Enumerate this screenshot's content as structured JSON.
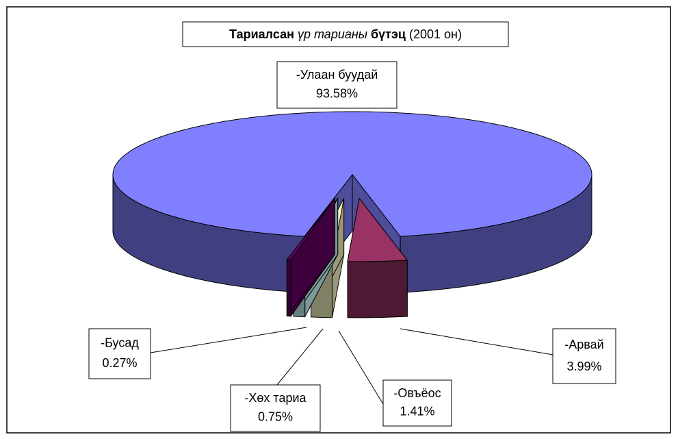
{
  "chart_data": {
    "type": "pie3d",
    "title": [
      {
        "text": "Тариалсан ",
        "bold": true,
        "italic": false
      },
      {
        "text": "үр тарианы ",
        "bold": false,
        "italic": true
      },
      {
        "text": "бүтэц ",
        "bold": true,
        "italic": false
      },
      {
        "text": "(2001 он)",
        "bold": false,
        "italic": false
      }
    ],
    "categories": [
      "-Улаан буудай",
      "-Арвай",
      "-Овъёос",
      "-Хөх тариа",
      "-Бусад"
    ],
    "values": [
      93.58,
      3.99,
      1.41,
      0.75,
      0.27
    ],
    "value_labels": [
      "93.58%",
      "3.99%",
      "1.41%",
      "0.75%",
      "0.27%"
    ],
    "colors": [
      "#8080ff",
      "#993366",
      "#ffffcc",
      "#ccffff",
      "#660066"
    ]
  }
}
